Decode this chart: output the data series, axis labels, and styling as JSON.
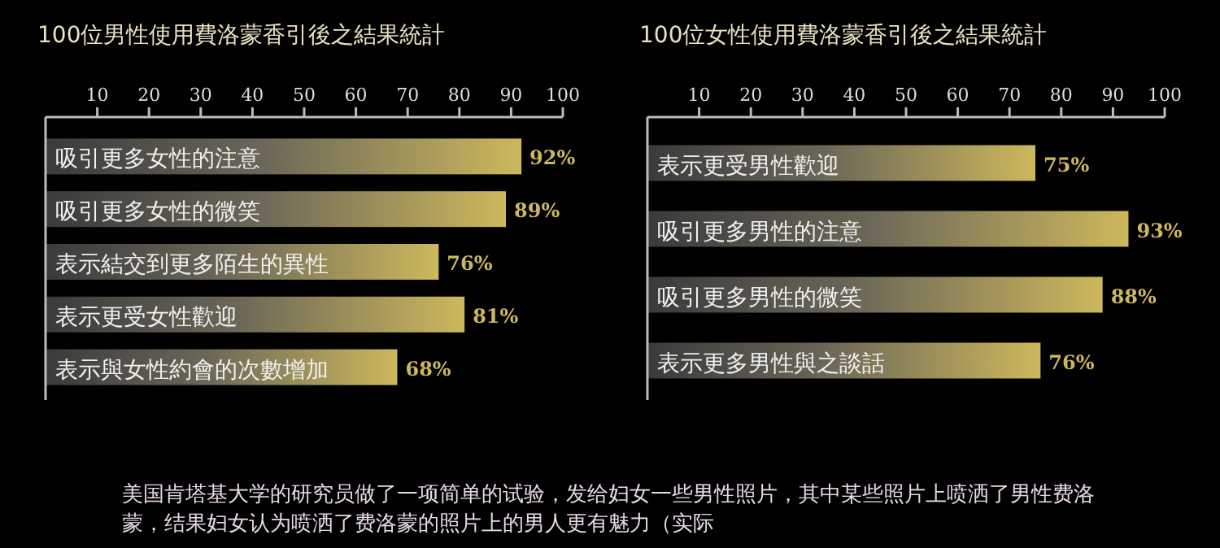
{
  "chart_data": [
    {
      "type": "bar",
      "orientation": "horizontal",
      "title": "100位男性使用費洛蒙香引後之結果統計",
      "categories": [
        "吸引更多女性的注意",
        "吸引更多女性的微笑",
        "表示結交到更多陌生的異性",
        "表示更受女性歡迎",
        "表示與女性約會的次數增加"
      ],
      "values": [
        92,
        89,
        76,
        81,
        68
      ],
      "value_labels": [
        "92%",
        "89%",
        "76%",
        "81%",
        "68%"
      ],
      "color": "#cdb85c",
      "xlim": [
        0,
        100
      ],
      "xticks": [
        10,
        20,
        30,
        40,
        50,
        60,
        70,
        80,
        90,
        100
      ],
      "annotations": [
        "美国肯塔基大学的研究员做了一项简单的试验，发给妇女一些男性照片，其中某些照片上喷洒了男性费洛蒙，结果妇女认为喷洒了费洛蒙的照片上的男人更有魅力（实际"
      ]
    },
    {
      "type": "bar",
      "orientation": "horizontal",
      "title": "100位女性使用費洛蒙香引後之結果統計",
      "categories": [
        "表示更受男性歡迎",
        "吸引更多男性的注意",
        "吸引更多男性的微笑",
        "表示更多男性與之談話"
      ],
      "values": [
        75,
        93,
        88,
        76
      ],
      "value_labels": [
        "75%",
        "93%",
        "88%",
        "76%"
      ],
      "color": "#cdb85c",
      "xlim": [
        0,
        100
      ],
      "xticks": [
        10,
        20,
        30,
        40,
        50,
        60,
        70,
        80,
        90,
        100
      ]
    }
  ]
}
